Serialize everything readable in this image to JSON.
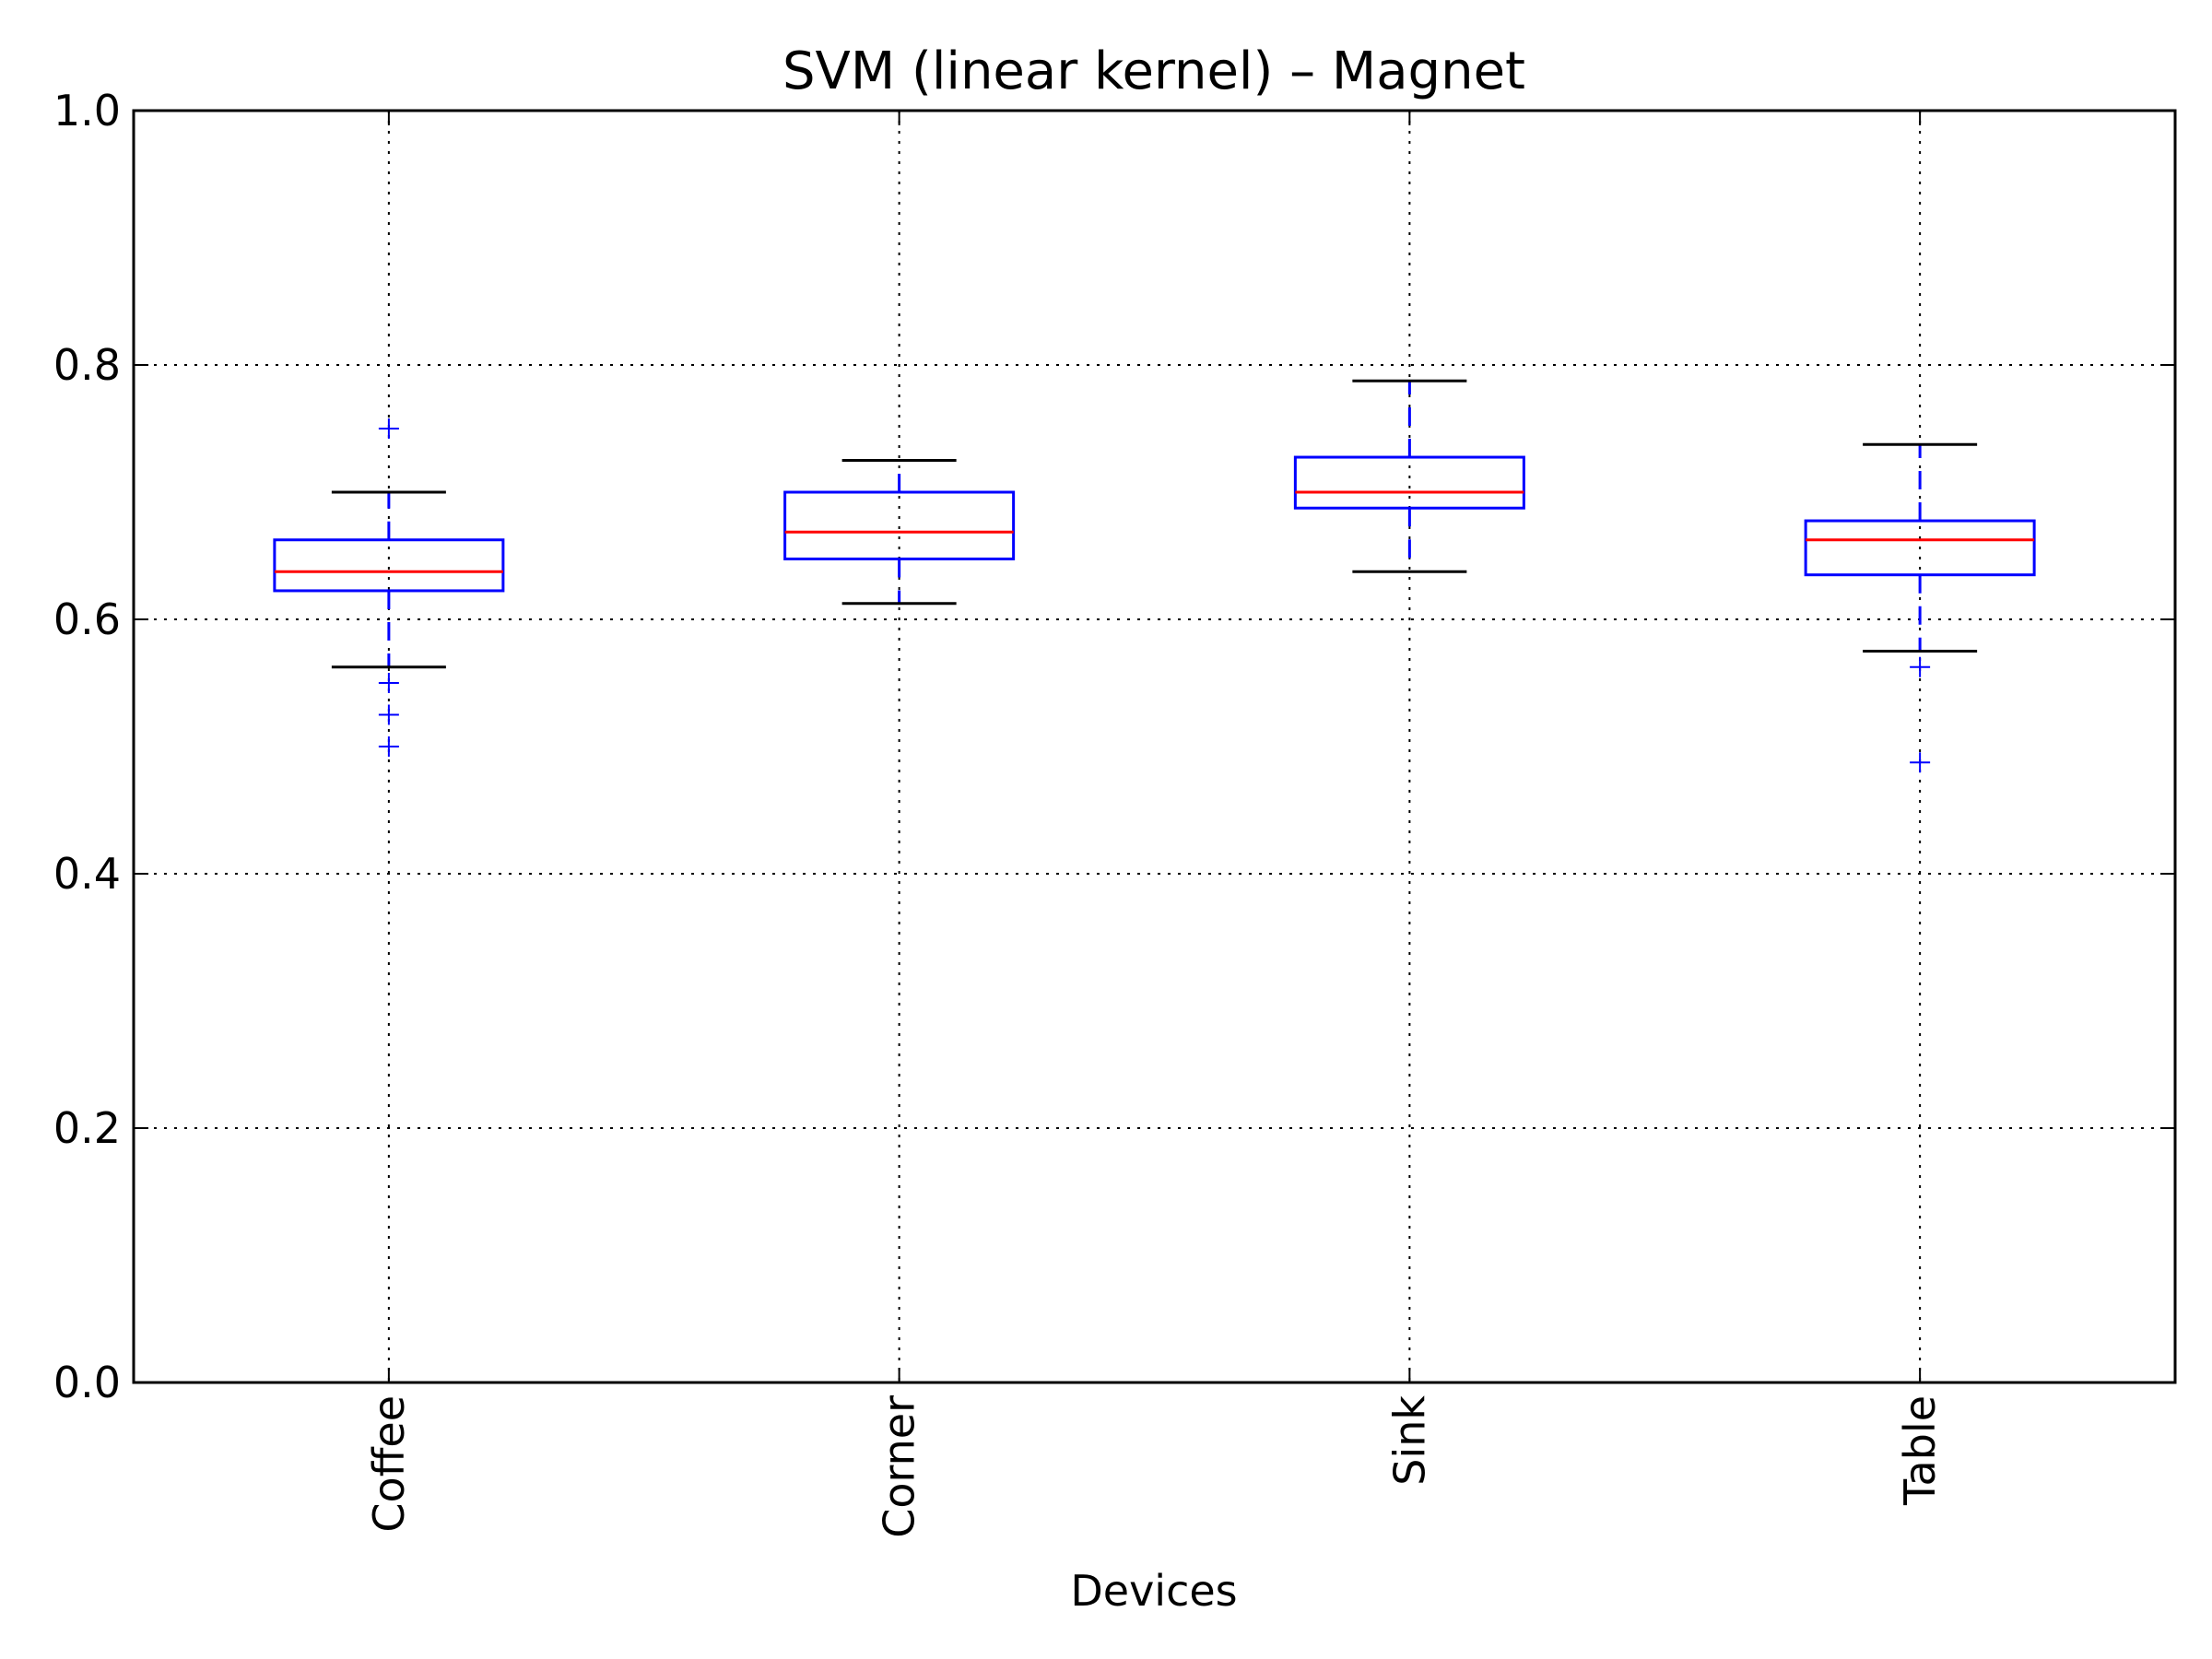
{
  "chart_data": {
    "type": "box",
    "title": "SVM (linear kernel) – Magnet",
    "xlabel": "Devices",
    "ylabel": "",
    "ylim": [
      0.0,
      1.0
    ],
    "yticks": [
      "0.0",
      "0.2",
      "0.4",
      "0.6",
      "0.8",
      "1.0"
    ],
    "grid": true,
    "categories": [
      "Coffee",
      "Corner",
      "Sink",
      "Table"
    ],
    "boxes": [
      {
        "category": "Coffee",
        "whisker_low": 0.5625,
        "q1": 0.6225,
        "median": 0.6375,
        "q3": 0.6625,
        "whisker_high": 0.7,
        "outliers": [
          0.75,
          0.55,
          0.525,
          0.5
        ]
      },
      {
        "category": "Corner",
        "whisker_low": 0.6125,
        "q1": 0.6475,
        "median": 0.6687,
        "q3": 0.7,
        "whisker_high": 0.725,
        "outliers": []
      },
      {
        "category": "Sink",
        "whisker_low": 0.6375,
        "q1": 0.6875,
        "median": 0.7,
        "q3": 0.7275,
        "whisker_high": 0.7875,
        "outliers": []
      },
      {
        "category": "Table",
        "whisker_low": 0.575,
        "q1": 0.635,
        "median": 0.6625,
        "q3": 0.6775,
        "whisker_high": 0.7375,
        "outliers": [
          0.5625,
          0.4875
        ]
      }
    ],
    "colors": {
      "box": "#0000ff",
      "median": "#ff0000",
      "cap": "#000000",
      "outlier": "#0000ff",
      "grid": "#000000"
    }
  }
}
